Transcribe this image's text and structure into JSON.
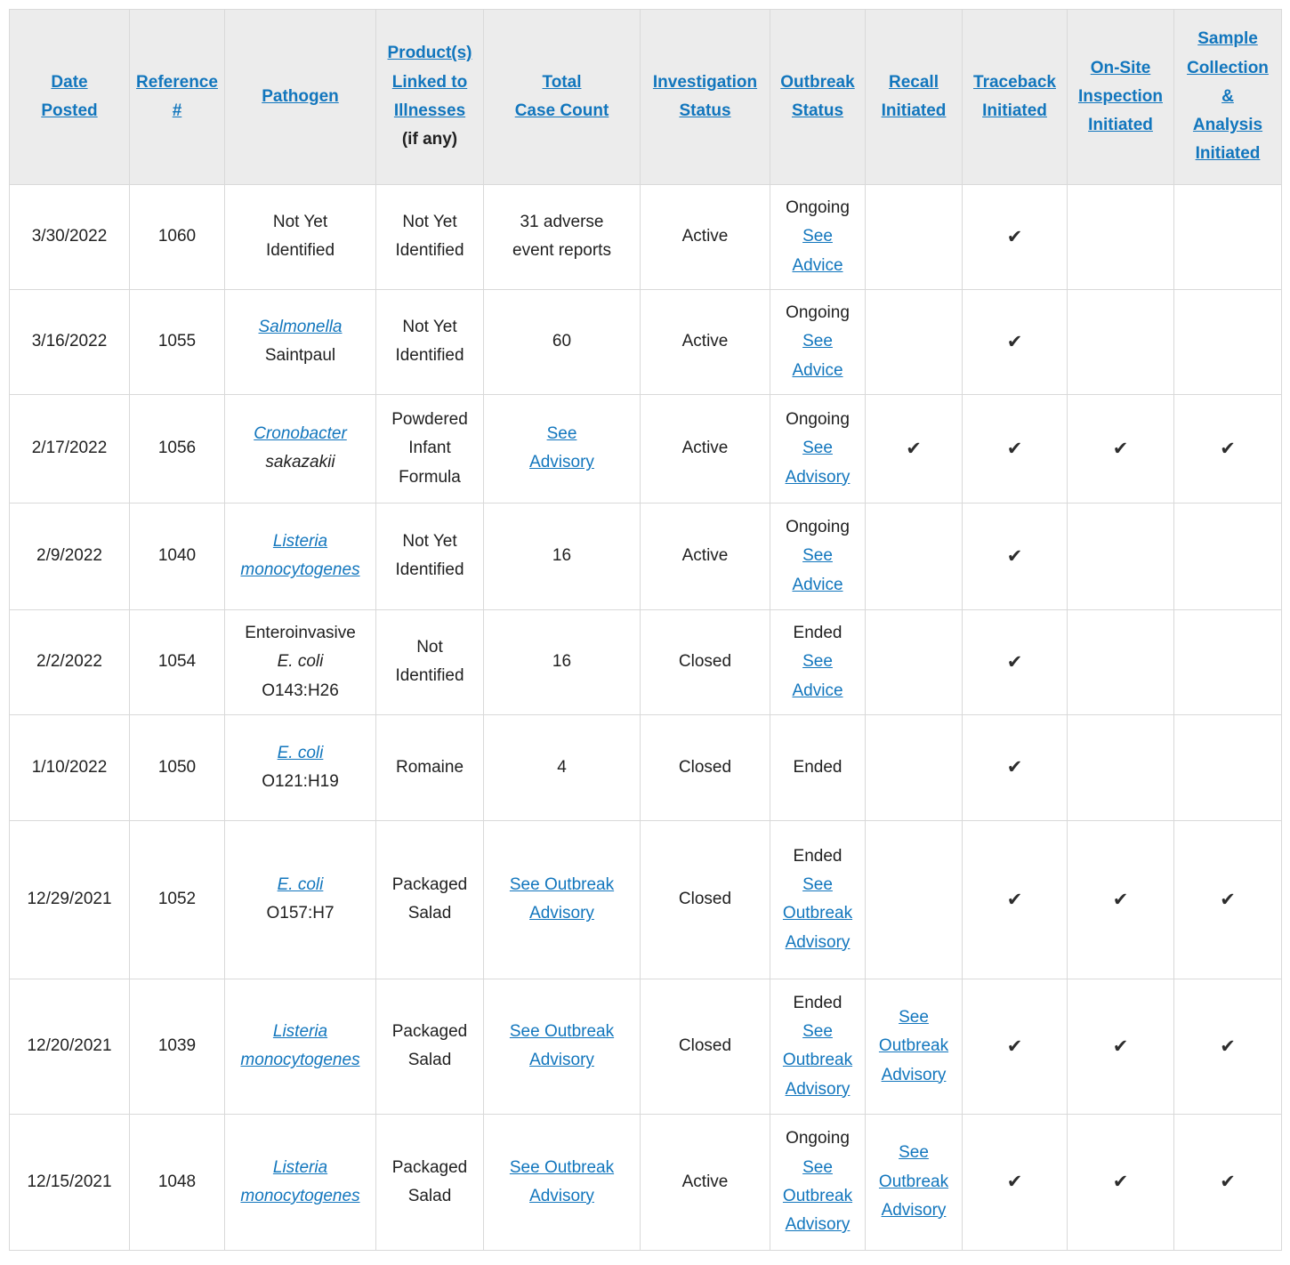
{
  "colors": {
    "link_blue": "#1276BD",
    "header_background": "#ECECEC",
    "grid_border": "#D9D9D9",
    "body_text": "#212121",
    "check_mark": "#2D2D2D"
  },
  "icons": {
    "check": "✔"
  },
  "table": {
    "columns": [
      {
        "id": "date",
        "label": "Date Posted",
        "lines": [
          "Date",
          "Posted"
        ]
      },
      {
        "id": "ref",
        "label": "Reference #",
        "lines": [
          "Reference",
          "#"
        ]
      },
      {
        "id": "pathogen",
        "label": "Pathogen",
        "lines": [
          "Pathogen"
        ]
      },
      {
        "id": "product",
        "label": "Product(s) Linked to Illnesses",
        "lines": [
          "Product(s)",
          "Linked to",
          "Illnesses"
        ],
        "note": "(if any)"
      },
      {
        "id": "cases",
        "label": "Total Case Count",
        "lines": [
          "Total",
          "Case Count"
        ]
      },
      {
        "id": "inv",
        "label": "Investigation Status",
        "lines": [
          "Investigation",
          "Status"
        ]
      },
      {
        "id": "outbreak",
        "label": "Outbreak Status",
        "lines": [
          "Outbreak",
          "Status"
        ]
      },
      {
        "id": "recall",
        "label": "Recall Initiated",
        "lines": [
          "Recall",
          "Initiated"
        ]
      },
      {
        "id": "traceback",
        "label": "Traceback Initiated",
        "lines": [
          "Traceback",
          "Initiated"
        ]
      },
      {
        "id": "onsite",
        "label": "On-Site Inspection Initiated",
        "lines": [
          "On-Site",
          "Inspection",
          "Initiated"
        ]
      },
      {
        "id": "sample",
        "label": "Sample Collection & Analysis Initiated",
        "lines": [
          "Sample",
          "Collection",
          "&",
          "Analysis",
          "Initiated"
        ]
      }
    ],
    "rows": [
      {
        "date": "3/30/2022",
        "ref": "1060",
        "pathogen": [
          {
            "text": "Not Yet"
          },
          {
            "text": "Identified"
          }
        ],
        "product": [
          "Not Yet",
          "Identified"
        ],
        "cases": [
          {
            "text": "31 adverse"
          },
          {
            "text": "event reports"
          }
        ],
        "investigation": "Active",
        "outbreak": {
          "status": "Ongoing",
          "link_lines": [
            "See",
            "Advice"
          ]
        },
        "recall": {},
        "traceback": {
          "check": true
        },
        "onsite": {},
        "sample": {}
      },
      {
        "date": "3/16/2022",
        "ref": "1055",
        "pathogen": [
          {
            "text": "Salmonella",
            "link": true,
            "italic": true
          },
          {
            "text": "Saintpaul"
          }
        ],
        "product": [
          "Not Yet",
          "Identified"
        ],
        "cases": [
          {
            "text": "60"
          }
        ],
        "investigation": "Active",
        "outbreak": {
          "status": "Ongoing",
          "link_lines": [
            "See",
            "Advice"
          ]
        },
        "recall": {},
        "traceback": {
          "check": true
        },
        "onsite": {},
        "sample": {}
      },
      {
        "date": "2/17/2022",
        "ref": "1056",
        "pathogen": [
          {
            "text": "Cronobacter",
            "link": true,
            "italic": true
          },
          {
            "text": "sakazakii",
            "italic": true
          }
        ],
        "product": [
          "Powdered",
          "Infant",
          "Formula"
        ],
        "cases": [
          {
            "text": "See",
            "link": true
          },
          {
            "text": "Advisory",
            "link": true
          }
        ],
        "investigation": "Active",
        "outbreak": {
          "status": "Ongoing",
          "link_lines": [
            "See",
            "Advisory"
          ]
        },
        "recall": {
          "check": true
        },
        "traceback": {
          "check": true
        },
        "onsite": {
          "check": true
        },
        "sample": {
          "check": true
        }
      },
      {
        "date": "2/9/2022",
        "ref": "1040",
        "pathogen": [
          {
            "text": "Listeria",
            "link": true,
            "italic": true
          },
          {
            "text": "monocytogenes",
            "link": true,
            "italic": true
          }
        ],
        "product": [
          "Not Yet",
          "Identified"
        ],
        "cases": [
          {
            "text": "16"
          }
        ],
        "investigation": "Active",
        "outbreak": {
          "status": "Ongoing",
          "link_lines": [
            "See",
            "Advice"
          ]
        },
        "recall": {},
        "traceback": {
          "check": true
        },
        "onsite": {},
        "sample": {}
      },
      {
        "date": "2/2/2022",
        "ref": "1054",
        "pathogen": [
          {
            "text": "Enteroinvasive"
          },
          {
            "text": "E. coli",
            "italic": true
          },
          {
            "text": "O143:H26"
          }
        ],
        "product": [
          "Not",
          "Identified"
        ],
        "cases": [
          {
            "text": "16"
          }
        ],
        "investigation": "Closed",
        "outbreak": {
          "status": "Ended",
          "link_lines": [
            "See",
            "Advice"
          ]
        },
        "recall": {},
        "traceback": {
          "check": true
        },
        "onsite": {},
        "sample": {}
      },
      {
        "date": "1/10/2022",
        "ref": "1050",
        "pathogen": [
          {
            "text": "E. coli",
            "link": true,
            "italic": true
          },
          {
            "text": "O121:H19"
          }
        ],
        "product": [
          "Romaine"
        ],
        "cases": [
          {
            "text": "4"
          }
        ],
        "investigation": "Closed",
        "outbreak": {
          "status": "Ended"
        },
        "recall": {},
        "traceback": {
          "check": true
        },
        "onsite": {},
        "sample": {}
      },
      {
        "date": "12/29/2021",
        "ref": "1052",
        "pathogen": [
          {
            "text": "E. coli",
            "link": true,
            "italic": true
          },
          {
            "text": "O157:H7"
          }
        ],
        "product": [
          "Packaged",
          "Salad"
        ],
        "cases": [
          {
            "text": "See Outbreak",
            "link": true
          },
          {
            "text": "Advisory",
            "link": true
          }
        ],
        "investigation": "Closed",
        "outbreak": {
          "status": "Ended",
          "link_lines": [
            "See",
            "Outbreak",
            "Advisory"
          ]
        },
        "recall": {},
        "traceback": {
          "check": true
        },
        "onsite": {
          "check": true
        },
        "sample": {
          "check": true
        }
      },
      {
        "date": "12/20/2021",
        "ref": "1039",
        "pathogen": [
          {
            "text": "Listeria",
            "link": true,
            "italic": true
          },
          {
            "text": "monocytogenes",
            "link": true,
            "italic": true
          }
        ],
        "product": [
          "Packaged",
          "Salad"
        ],
        "cases": [
          {
            "text": "See Outbreak",
            "link": true
          },
          {
            "text": "Advisory",
            "link": true
          }
        ],
        "investigation": "Closed",
        "outbreak": {
          "status": "Ended",
          "link_lines": [
            "See",
            "Outbreak",
            "Advisory"
          ]
        },
        "recall": {
          "link_lines": [
            "See",
            "Outbreak",
            "Advisory"
          ]
        },
        "traceback": {
          "check": true
        },
        "onsite": {
          "check": true
        },
        "sample": {
          "check": true
        }
      },
      {
        "date": "12/15/2021",
        "ref": "1048",
        "pathogen": [
          {
            "text": "Listeria",
            "link": true,
            "italic": true
          },
          {
            "text": "monocytogenes",
            "link": true,
            "italic": true
          }
        ],
        "product": [
          "Packaged",
          "Salad"
        ],
        "cases": [
          {
            "text": "See Outbreak",
            "link": true
          },
          {
            "text": "Advisory",
            "link": true
          }
        ],
        "investigation": "Active",
        "outbreak": {
          "status": "Ongoing",
          "link_lines": [
            "See",
            "Outbreak",
            "Advisory"
          ]
        },
        "recall": {
          "link_lines": [
            "See",
            "Outbreak",
            "Advisory"
          ]
        },
        "traceback": {
          "check": true
        },
        "onsite": {
          "check": true
        },
        "sample": {
          "check": true
        }
      }
    ]
  }
}
